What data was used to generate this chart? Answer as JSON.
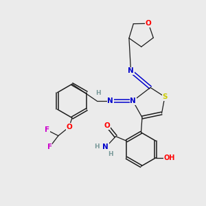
{
  "bg_color": "#ebebeb",
  "bond_color": "#1a1a1a",
  "atom_colors": {
    "O": "#ff0000",
    "N": "#0000cc",
    "S": "#cccc00",
    "F": "#cc00cc",
    "C": "#1a1a1a",
    "H": "#7a9a9a"
  }
}
